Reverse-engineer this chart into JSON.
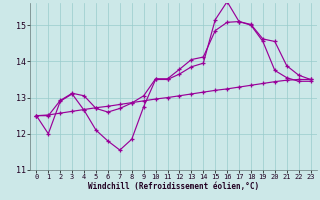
{
  "xlabel": "Windchill (Refroidissement éolien,°C)",
  "bg_color": "#cce8e8",
  "line_color": "#990099",
  "grid_color": "#99cccc",
  "xlim": [
    -0.5,
    23.5
  ],
  "ylim": [
    11.0,
    15.6
  ],
  "yticks": [
    11,
    12,
    13,
    14,
    15
  ],
  "xticks": [
    0,
    1,
    2,
    3,
    4,
    5,
    6,
    7,
    8,
    9,
    10,
    11,
    12,
    13,
    14,
    15,
    16,
    17,
    18,
    19,
    20,
    21,
    22,
    23
  ],
  "line1_y": [
    12.5,
    12.0,
    12.9,
    13.1,
    12.65,
    12.1,
    11.8,
    11.55,
    11.85,
    12.75,
    13.5,
    13.5,
    13.65,
    13.85,
    13.95,
    15.15,
    15.65,
    15.1,
    15.0,
    14.55,
    13.75,
    13.55,
    13.45,
    13.45
  ],
  "line2_y": [
    12.5,
    12.5,
    12.92,
    13.12,
    13.05,
    12.7,
    12.6,
    12.7,
    12.85,
    13.05,
    13.52,
    13.52,
    13.78,
    14.05,
    14.12,
    14.85,
    15.08,
    15.1,
    15.02,
    14.62,
    14.55,
    13.88,
    13.62,
    13.5
  ],
  "line3_y": [
    12.5,
    12.52,
    12.57,
    12.62,
    12.67,
    12.72,
    12.76,
    12.81,
    12.86,
    12.91,
    12.96,
    13.0,
    13.05,
    13.1,
    13.15,
    13.2,
    13.24,
    13.29,
    13.34,
    13.39,
    13.44,
    13.48,
    13.5,
    13.5
  ]
}
